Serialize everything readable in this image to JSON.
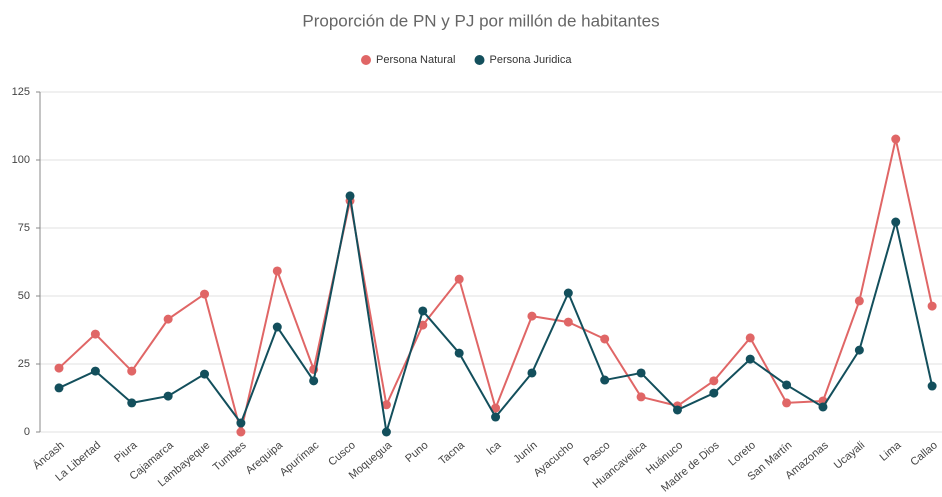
{
  "chart_data": {
    "type": "line",
    "title": "Proporción de PN y PJ por millón de habitantes",
    "categories": [
      "Áncash",
      "La Libertad",
      "Piura",
      "Cajamarca",
      "Lambayeque",
      "Tumbes",
      "Arequipa",
      "Apurímac",
      "Cusco",
      "Moquegua",
      "Puno",
      "Tacna",
      "Ica",
      "Junín",
      "Ayacucho",
      "Pasco",
      "Huancavelica",
      "Huánuco",
      "Madre de Dios",
      "Loreto",
      "San Martín",
      "Amazonas",
      "Ucayali",
      "Lima",
      "Callao"
    ],
    "series": [
      {
        "name": "Persona Natural",
        "color": "#e06666",
        "values": [
          23.5,
          36,
          22.4,
          41.5,
          50.7,
          0,
          59.2,
          23,
          85,
          10,
          39.3,
          56.2,
          8.8,
          42.6,
          40.4,
          34.2,
          12.9,
          9.6,
          18.8,
          34.6,
          10.7,
          11.4,
          48.2,
          107.7,
          46.3
        ]
      },
      {
        "name": "Persona Juridica",
        "color": "#134f5c",
        "values": [
          16.2,
          22.4,
          10.7,
          13.2,
          21.3,
          3.3,
          38.6,
          18.8,
          86.8,
          0,
          44.5,
          29,
          5.5,
          21.7,
          51.1,
          19.1,
          21.7,
          8.1,
          14.3,
          26.8,
          17.3,
          9.2,
          30.1,
          77.2,
          16.9
        ]
      }
    ],
    "ylim": [
      0,
      125
    ],
    "yticks": [
      0,
      25,
      50,
      75,
      100,
      125
    ],
    "grid": true,
    "legend": "top"
  }
}
